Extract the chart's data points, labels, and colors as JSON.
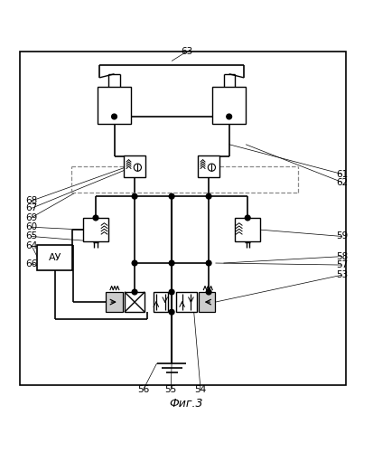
{
  "title": "Фиг.3",
  "bg_color": "#ffffff",
  "line_color": "#000000",
  "dashed_color": "#888888",
  "fig_width": 4.13,
  "fig_height": 5.0
}
